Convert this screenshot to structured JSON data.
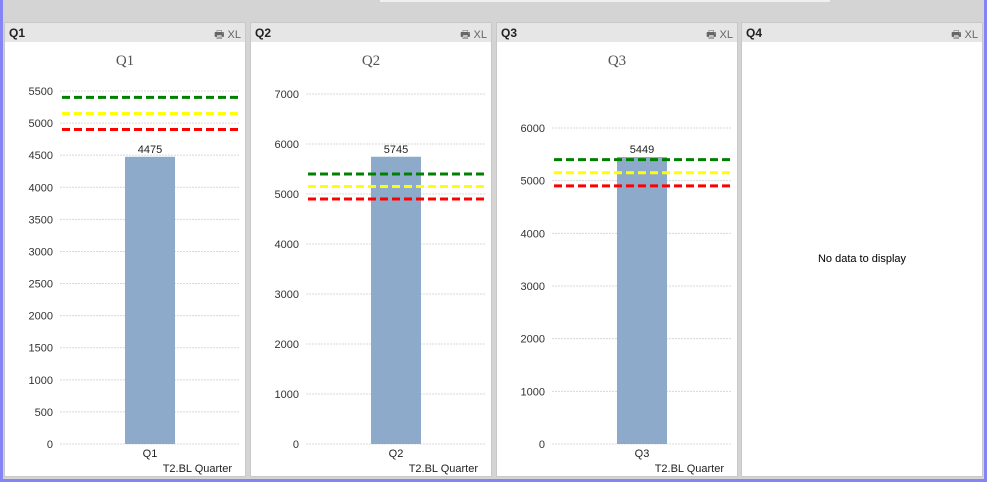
{
  "panels": [
    {
      "caption": "Q1",
      "tools": {
        "print_icon": "printer-icon",
        "xl_label": "XL"
      }
    },
    {
      "caption": "Q2",
      "tools": {
        "print_icon": "printer-icon",
        "xl_label": "XL"
      }
    },
    {
      "caption": "Q3",
      "tools": {
        "print_icon": "printer-icon",
        "xl_label": "XL"
      }
    },
    {
      "caption": "Q4",
      "tools": {
        "print_icon": "printer-icon",
        "xl_label": "XL"
      },
      "message": "No data to display"
    }
  ],
  "reference_lines": [
    {
      "value": 5400,
      "color": "#008000"
    },
    {
      "value": 5150,
      "color": "#ffff00"
    },
    {
      "value": 4900,
      "color": "#ff0000"
    }
  ],
  "bar_color": "#8eaacb",
  "chart_data": [
    {
      "type": "bar",
      "title": "Q1",
      "categories": [
        "Q1"
      ],
      "values": [
        4475
      ],
      "xlabel": "T2.BL Quarter",
      "ylim": [
        0,
        5500
      ],
      "yticks": [
        0,
        500,
        1000,
        1500,
        2000,
        2500,
        3000,
        3500,
        4000,
        4500,
        5000,
        5500
      ],
      "grid": true
    },
    {
      "type": "bar",
      "title": "Q2",
      "categories": [
        "Q2"
      ],
      "values": [
        5745
      ],
      "xlabel": "T2.BL Quarter",
      "ylim": [
        0,
        7000
      ],
      "yticks": [
        0,
        1000,
        2000,
        3000,
        4000,
        5000,
        6000,
        7000
      ],
      "grid": true
    },
    {
      "type": "bar",
      "title": "Q3",
      "categories": [
        "Q3"
      ],
      "values": [
        5449
      ],
      "xlabel": "T2.BL Quarter",
      "ylim": [
        0,
        6000
      ],
      "yticks": [
        0,
        1000,
        2000,
        3000,
        4000,
        5000,
        6000
      ],
      "grid": true
    }
  ]
}
